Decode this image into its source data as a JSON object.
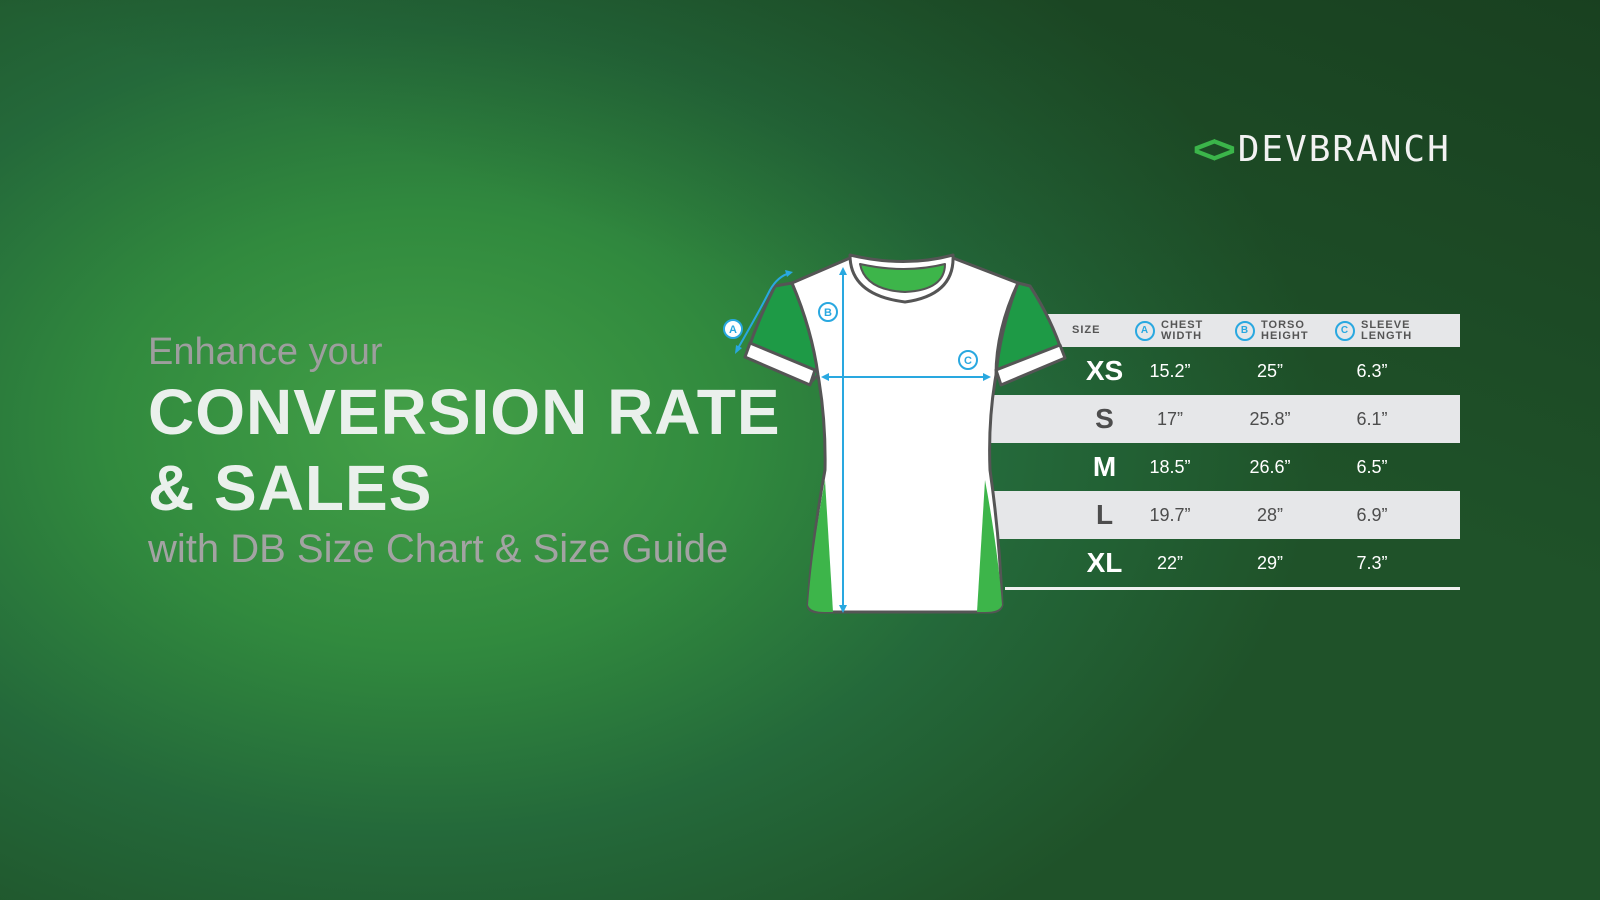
{
  "logo": {
    "mark": "<>",
    "text": "DEVBRANCH"
  },
  "hero": {
    "intro": "Enhance your",
    "headline_line1": "CONVERSION RATE",
    "headline_line2": "& SALES",
    "subline": "with DB Size Chart & Size Guide"
  },
  "diagram": {
    "labels": [
      "A",
      "B",
      "C"
    ],
    "accent": "#29a8e0",
    "shirt_green": "#1e9a46",
    "panel_green": "#3db54a"
  },
  "size_table": {
    "headers": [
      {
        "key": "",
        "label": "SIZE"
      },
      {
        "key": "A",
        "label": "CHEST",
        "label2": "WIDTH"
      },
      {
        "key": "B",
        "label": "TORSO",
        "label2": "HEIGHT"
      },
      {
        "key": "C",
        "label": "SLEEVE",
        "label2": "LENGTH"
      }
    ],
    "rows": [
      {
        "size": "XS",
        "chest": "15.2”",
        "torso": "25”",
        "sleeve": "6.3”"
      },
      {
        "size": "S",
        "chest": "17”",
        "torso": "25.8”",
        "sleeve": "6.1”"
      },
      {
        "size": "M",
        "chest": "18.5”",
        "torso": "26.6”",
        "sleeve": "6.5”"
      },
      {
        "size": "L",
        "chest": "19.7”",
        "torso": "28”",
        "sleeve": "6.9”"
      },
      {
        "size": "XL",
        "chest": "22”",
        "torso": "29”",
        "sleeve": "7.3”"
      }
    ]
  }
}
